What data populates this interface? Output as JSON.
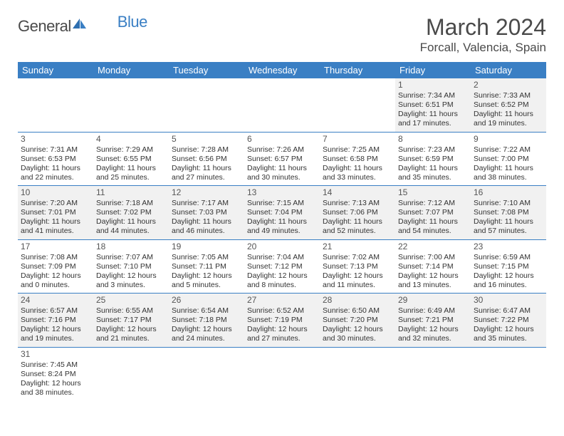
{
  "logo": {
    "general": "General",
    "blue": "Blue"
  },
  "title": "March 2024",
  "location": "Forcall, Valencia, Spain",
  "colors": {
    "header_bg": "#3a7fc4",
    "header_text": "#ffffff",
    "row_odd_bg": "#f1f1f1",
    "row_even_bg": "#ffffff",
    "border": "#3a7fc4",
    "text": "#333333"
  },
  "weekdays": [
    "Sunday",
    "Monday",
    "Tuesday",
    "Wednesday",
    "Thursday",
    "Friday",
    "Saturday"
  ],
  "weeks": [
    [
      null,
      null,
      null,
      null,
      null,
      {
        "n": "1",
        "sr": "Sunrise: 7:34 AM",
        "ss": "Sunset: 6:51 PM",
        "dl": "Daylight: 11 hours and 17 minutes."
      },
      {
        "n": "2",
        "sr": "Sunrise: 7:33 AM",
        "ss": "Sunset: 6:52 PM",
        "dl": "Daylight: 11 hours and 19 minutes."
      }
    ],
    [
      {
        "n": "3",
        "sr": "Sunrise: 7:31 AM",
        "ss": "Sunset: 6:53 PM",
        "dl": "Daylight: 11 hours and 22 minutes."
      },
      {
        "n": "4",
        "sr": "Sunrise: 7:29 AM",
        "ss": "Sunset: 6:55 PM",
        "dl": "Daylight: 11 hours and 25 minutes."
      },
      {
        "n": "5",
        "sr": "Sunrise: 7:28 AM",
        "ss": "Sunset: 6:56 PM",
        "dl": "Daylight: 11 hours and 27 minutes."
      },
      {
        "n": "6",
        "sr": "Sunrise: 7:26 AM",
        "ss": "Sunset: 6:57 PM",
        "dl": "Daylight: 11 hours and 30 minutes."
      },
      {
        "n": "7",
        "sr": "Sunrise: 7:25 AM",
        "ss": "Sunset: 6:58 PM",
        "dl": "Daylight: 11 hours and 33 minutes."
      },
      {
        "n": "8",
        "sr": "Sunrise: 7:23 AM",
        "ss": "Sunset: 6:59 PM",
        "dl": "Daylight: 11 hours and 35 minutes."
      },
      {
        "n": "9",
        "sr": "Sunrise: 7:22 AM",
        "ss": "Sunset: 7:00 PM",
        "dl": "Daylight: 11 hours and 38 minutes."
      }
    ],
    [
      {
        "n": "10",
        "sr": "Sunrise: 7:20 AM",
        "ss": "Sunset: 7:01 PM",
        "dl": "Daylight: 11 hours and 41 minutes."
      },
      {
        "n": "11",
        "sr": "Sunrise: 7:18 AM",
        "ss": "Sunset: 7:02 PM",
        "dl": "Daylight: 11 hours and 44 minutes."
      },
      {
        "n": "12",
        "sr": "Sunrise: 7:17 AM",
        "ss": "Sunset: 7:03 PM",
        "dl": "Daylight: 11 hours and 46 minutes."
      },
      {
        "n": "13",
        "sr": "Sunrise: 7:15 AM",
        "ss": "Sunset: 7:04 PM",
        "dl": "Daylight: 11 hours and 49 minutes."
      },
      {
        "n": "14",
        "sr": "Sunrise: 7:13 AM",
        "ss": "Sunset: 7:06 PM",
        "dl": "Daylight: 11 hours and 52 minutes."
      },
      {
        "n": "15",
        "sr": "Sunrise: 7:12 AM",
        "ss": "Sunset: 7:07 PM",
        "dl": "Daylight: 11 hours and 54 minutes."
      },
      {
        "n": "16",
        "sr": "Sunrise: 7:10 AM",
        "ss": "Sunset: 7:08 PM",
        "dl": "Daylight: 11 hours and 57 minutes."
      }
    ],
    [
      {
        "n": "17",
        "sr": "Sunrise: 7:08 AM",
        "ss": "Sunset: 7:09 PM",
        "dl": "Daylight: 12 hours and 0 minutes."
      },
      {
        "n": "18",
        "sr": "Sunrise: 7:07 AM",
        "ss": "Sunset: 7:10 PM",
        "dl": "Daylight: 12 hours and 3 minutes."
      },
      {
        "n": "19",
        "sr": "Sunrise: 7:05 AM",
        "ss": "Sunset: 7:11 PM",
        "dl": "Daylight: 12 hours and 5 minutes."
      },
      {
        "n": "20",
        "sr": "Sunrise: 7:04 AM",
        "ss": "Sunset: 7:12 PM",
        "dl": "Daylight: 12 hours and 8 minutes."
      },
      {
        "n": "21",
        "sr": "Sunrise: 7:02 AM",
        "ss": "Sunset: 7:13 PM",
        "dl": "Daylight: 12 hours and 11 minutes."
      },
      {
        "n": "22",
        "sr": "Sunrise: 7:00 AM",
        "ss": "Sunset: 7:14 PM",
        "dl": "Daylight: 12 hours and 13 minutes."
      },
      {
        "n": "23",
        "sr": "Sunrise: 6:59 AM",
        "ss": "Sunset: 7:15 PM",
        "dl": "Daylight: 12 hours and 16 minutes."
      }
    ],
    [
      {
        "n": "24",
        "sr": "Sunrise: 6:57 AM",
        "ss": "Sunset: 7:16 PM",
        "dl": "Daylight: 12 hours and 19 minutes."
      },
      {
        "n": "25",
        "sr": "Sunrise: 6:55 AM",
        "ss": "Sunset: 7:17 PM",
        "dl": "Daylight: 12 hours and 21 minutes."
      },
      {
        "n": "26",
        "sr": "Sunrise: 6:54 AM",
        "ss": "Sunset: 7:18 PM",
        "dl": "Daylight: 12 hours and 24 minutes."
      },
      {
        "n": "27",
        "sr": "Sunrise: 6:52 AM",
        "ss": "Sunset: 7:19 PM",
        "dl": "Daylight: 12 hours and 27 minutes."
      },
      {
        "n": "28",
        "sr": "Sunrise: 6:50 AM",
        "ss": "Sunset: 7:20 PM",
        "dl": "Daylight: 12 hours and 30 minutes."
      },
      {
        "n": "29",
        "sr": "Sunrise: 6:49 AM",
        "ss": "Sunset: 7:21 PM",
        "dl": "Daylight: 12 hours and 32 minutes."
      },
      {
        "n": "30",
        "sr": "Sunrise: 6:47 AM",
        "ss": "Sunset: 7:22 PM",
        "dl": "Daylight: 12 hours and 35 minutes."
      }
    ],
    [
      {
        "n": "31",
        "sr": "Sunrise: 7:45 AM",
        "ss": "Sunset: 8:24 PM",
        "dl": "Daylight: 12 hours and 38 minutes."
      },
      null,
      null,
      null,
      null,
      null,
      null
    ]
  ]
}
